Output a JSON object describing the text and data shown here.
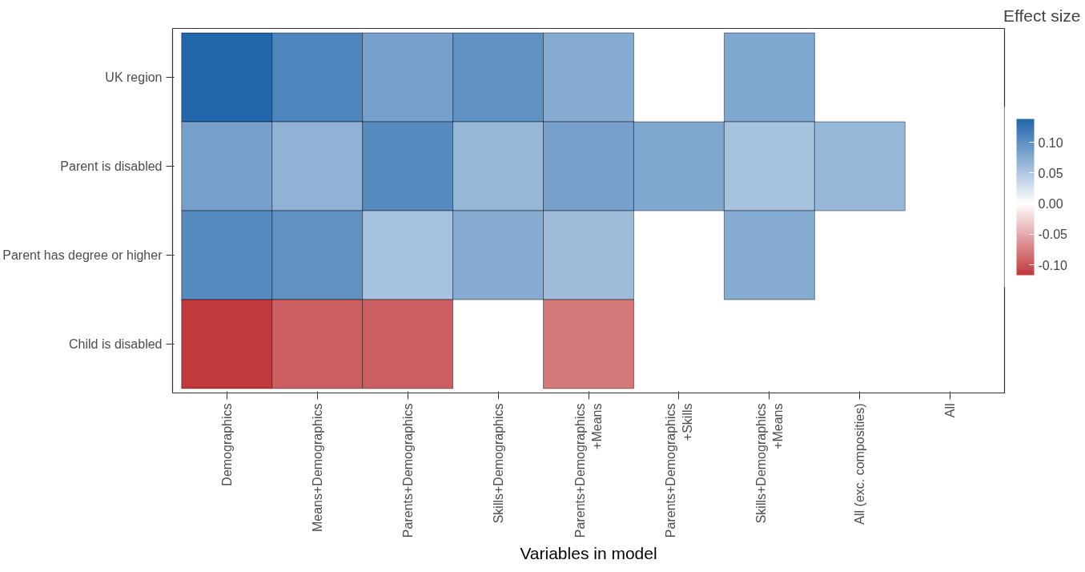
{
  "chart_data": {
    "type": "heatmap",
    "xlabel": "Variables in model",
    "legend_title": "Effect size",
    "categories": [
      "Demographics",
      "Means+Demographics",
      "Parents+Demographics",
      "Skills+Demographics",
      "Parents+Demographics\n+Means",
      "Parents+Demographics\n+Skills",
      "Skills+Demographics\n+Means",
      "All (exc. composities)",
      "All"
    ],
    "y_categories": [
      "UK region",
      "Parent is disabled",
      "Parent has degree or higher",
      "Child is disabled"
    ],
    "cells": [
      [
        0.138,
        0.11,
        0.085,
        0.1,
        0.075,
        null,
        0.08,
        null,
        null
      ],
      [
        0.085,
        0.07,
        0.105,
        0.065,
        0.085,
        0.08,
        0.055,
        0.065,
        null
      ],
      [
        0.105,
        0.1,
        0.055,
        0.075,
        0.06,
        null,
        0.075,
        null,
        null
      ],
      [
        -0.117,
        -0.095,
        -0.095,
        null,
        -0.08,
        null,
        null,
        null,
        null
      ]
    ],
    "colors": [
      "#c0393b",
      "#ffffff",
      "#2166ac"
    ],
    "clim": [
      -0.117,
      0.138
    ],
    "cticks": [
      {
        "value": -0.1,
        "label": "-0.10"
      },
      {
        "value": -0.05,
        "label": "-0.05"
      },
      {
        "value": 0,
        "label": "0.00"
      },
      {
        "value": 0.05,
        "label": "0.05"
      },
      {
        "value": 0.1,
        "label": "0.10"
      }
    ]
  }
}
